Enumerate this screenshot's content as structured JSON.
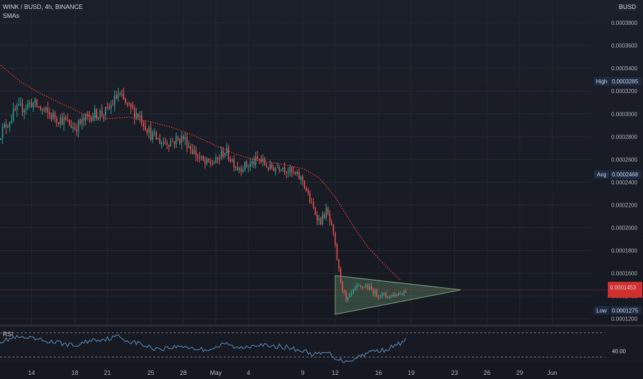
{
  "header": {
    "title": "WINK / BUSD, 4h, BINANCE",
    "indicator": "SMAs",
    "currency": "BUSD"
  },
  "rsi": {
    "label": "RSI",
    "level_label": "40.00"
  },
  "colors": {
    "up": "#26a69a",
    "down": "#ef5350",
    "sma": "#e53935",
    "triangle": "#4f6e56",
    "price_tag": "#d32f2f",
    "rsi_line": "#5f8fc2",
    "level_tag": "#1e2c45"
  },
  "chart_data": {
    "type": "candlestick",
    "title": "WINK / BUSD, 4h, BINANCE",
    "ylim": [
      0.000115,
      0.0004
    ],
    "y_ticks": [
      "0.0001200",
      "0.0001400",
      "0.0001600",
      "0.0001800",
      "0.0002000",
      "0.0002200",
      "0.0002400",
      "0.0002600",
      "0.0002800",
      "0.0003000",
      "0.0003200",
      "0.0003400",
      "0.0003600",
      "0.0003800"
    ],
    "x_ticks": [
      "14",
      "18",
      "21",
      "25",
      "28",
      "May",
      "4",
      "9",
      "12",
      "16",
      "19",
      "23",
      "26",
      "29",
      "Jun"
    ],
    "x_tick_days": [
      0,
      4,
      7,
      11,
      14,
      17,
      20,
      25,
      28,
      32,
      35,
      39,
      42,
      45,
      48
    ],
    "x_range_days": [
      -2.9,
      51.6
    ],
    "current_price": 0.0001453,
    "current_price_label": "0.0001453",
    "price_levels": [
      {
        "label": "High",
        "value": 0.0003285,
        "value_label": "0.0003285"
      },
      {
        "label": "Avg",
        "value": 0.0002468,
        "value_label": "0.0002468"
      },
      {
        "label": "Low",
        "value": 0.0001275,
        "value_label": "0.0001275"
      }
    ],
    "anchors": [
      [
        -3.0,
        0.000281
      ],
      [
        -1.5,
        0.000302
      ],
      [
        0.0,
        0.00031
      ],
      [
        1.5,
        0.0003
      ],
      [
        3.0,
        0.000294
      ],
      [
        4.0,
        0.000288
      ],
      [
        5.5,
        0.000299
      ],
      [
        7.0,
        0.000302
      ],
      [
        8.0,
        0.000317
      ],
      [
        9.0,
        0.000305
      ],
      [
        10.0,
        0.000298
      ],
      [
        11.0,
        0.000282
      ],
      [
        12.0,
        0.000275
      ],
      [
        13.0,
        0.000276
      ],
      [
        14.0,
        0.000279
      ],
      [
        15.0,
        0.000266
      ],
      [
        16.0,
        0.000256
      ],
      [
        17.0,
        0.000258
      ],
      [
        17.8,
        0.000268
      ],
      [
        19.0,
        0.000253
      ],
      [
        20.0,
        0.000255
      ],
      [
        21.0,
        0.00026
      ],
      [
        22.0,
        0.000252
      ],
      [
        23.0,
        0.000255
      ],
      [
        24.0,
        0.000248
      ],
      [
        25.0,
        0.000242
      ],
      [
        25.8,
        0.00022
      ],
      [
        26.6,
        0.000205
      ],
      [
        27.2,
        0.000215
      ],
      [
        27.8,
        0.000195
      ],
      [
        28.4,
        0.000158
      ],
      [
        29.0,
        0.000135
      ],
      [
        29.8,
        0.000146
      ],
      [
        30.8,
        0.000149
      ],
      [
        31.8,
        0.000142
      ],
      [
        32.8,
        0.00014
      ],
      [
        33.8,
        0.000142
      ],
      [
        34.5,
        0.000145
      ]
    ],
    "sma": [
      [
        -3.0,
        0.000344
      ],
      [
        -1.0,
        0.000328
      ],
      [
        1.0,
        0.000317
      ],
      [
        3.0,
        0.000308
      ],
      [
        5.0,
        0.000299
      ],
      [
        7.0,
        0.000296
      ],
      [
        9.0,
        0.000297
      ],
      [
        11.0,
        0.000293
      ],
      [
        13.0,
        0.000288
      ],
      [
        15.0,
        0.000281
      ],
      [
        17.0,
        0.000272
      ],
      [
        19.0,
        0.000264
      ],
      [
        21.0,
        0.000259
      ],
      [
        23.0,
        0.000256
      ],
      [
        25.0,
        0.000252
      ],
      [
        26.5,
        0.000244
      ],
      [
        28.0,
        0.000227
      ],
      [
        29.5,
        0.000204
      ],
      [
        31.0,
        0.000183
      ],
      [
        32.5,
        0.000168
      ],
      [
        34.0,
        0.000154
      ]
    ],
    "triangle": [
      [
        28.0,
        0.000158
      ],
      [
        28.0,
        0.000124
      ],
      [
        39.6,
        0.0001455
      ]
    ],
    "rsi_ylim": [
      20,
      80
    ],
    "rsi_levels": [
      30,
      70
    ],
    "rsi_current": 40.0,
    "rsi_anchors": [
      [
        -3.0,
        55
      ],
      [
        -1.5,
        62
      ],
      [
        0.0,
        60
      ],
      [
        1.5,
        56
      ],
      [
        3.0,
        52
      ],
      [
        4.0,
        48
      ],
      [
        5.5,
        58
      ],
      [
        7.0,
        60
      ],
      [
        8.0,
        64
      ],
      [
        9.0,
        56
      ],
      [
        10.0,
        52
      ],
      [
        11.0,
        45
      ],
      [
        12.0,
        44
      ],
      [
        13.0,
        46
      ],
      [
        14.0,
        48
      ],
      [
        15.0,
        44
      ],
      [
        16.0,
        42
      ],
      [
        17.0,
        46
      ],
      [
        18.0,
        52
      ],
      [
        19.0,
        44
      ],
      [
        20.0,
        48
      ],
      [
        21.0,
        52
      ],
      [
        22.0,
        46
      ],
      [
        23.0,
        48
      ],
      [
        24.0,
        44
      ],
      [
        25.0,
        40
      ],
      [
        25.8,
        36
      ],
      [
        26.6,
        34
      ],
      [
        27.2,
        38
      ],
      [
        27.8,
        32
      ],
      [
        28.4,
        25
      ],
      [
        29.0,
        24
      ],
      [
        29.8,
        27
      ],
      [
        30.5,
        34
      ],
      [
        31.5,
        40
      ],
      [
        32.5,
        42
      ],
      [
        33.5,
        48
      ],
      [
        34.5,
        58
      ]
    ]
  }
}
